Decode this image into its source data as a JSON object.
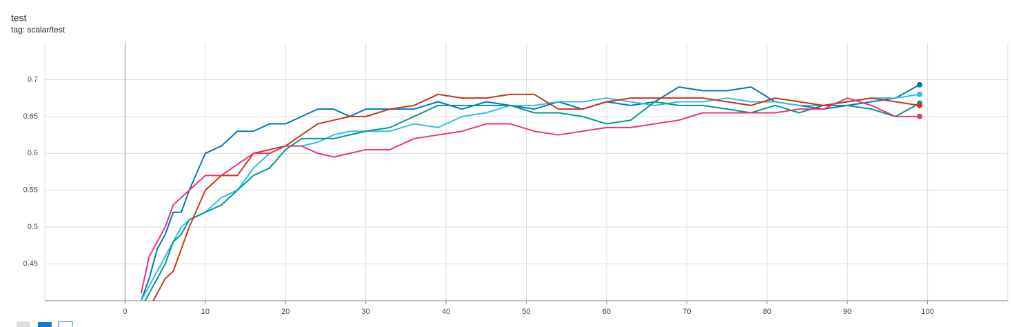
{
  "chart_data": {
    "type": "line",
    "title": "test",
    "subtitle": "tag: scalar/test",
    "x": [
      2,
      3,
      4,
      5,
      6,
      7,
      8,
      10,
      12,
      14,
      16,
      18,
      20,
      22,
      24,
      26,
      28,
      30,
      33,
      36,
      39,
      42,
      45,
      48,
      51,
      54,
      57,
      60,
      63,
      66,
      69,
      72,
      75,
      78,
      81,
      84,
      87,
      90,
      93,
      96,
      99
    ],
    "series": [
      {
        "color": "#0077bb",
        "values": [
          0.4,
          0.43,
          0.47,
          0.49,
          0.52,
          0.52,
          0.55,
          0.6,
          0.61,
          0.63,
          0.63,
          0.64,
          0.64,
          0.65,
          0.66,
          0.66,
          0.65,
          0.66,
          0.66,
          0.66,
          0.67,
          0.66,
          0.67,
          0.665,
          0.66,
          0.67,
          0.66,
          0.67,
          0.665,
          0.67,
          0.69,
          0.685,
          0.685,
          0.69,
          0.67,
          0.665,
          0.66,
          0.665,
          0.67,
          0.675,
          0.693
        ]
      },
      {
        "color": "#33bbee",
        "values": [
          0.4,
          0.42,
          0.44,
          0.46,
          0.48,
          0.5,
          0.51,
          0.52,
          0.54,
          0.55,
          0.58,
          0.6,
          0.61,
          0.61,
          0.615,
          0.625,
          0.63,
          0.63,
          0.63,
          0.64,
          0.635,
          0.65,
          0.655,
          0.665,
          0.665,
          0.67,
          0.67,
          0.675,
          0.67,
          0.665,
          0.67,
          0.67,
          0.675,
          0.67,
          0.67,
          0.665,
          0.665,
          0.67,
          0.675,
          0.675,
          0.68
        ]
      },
      {
        "color": "#009988",
        "values": [
          0.39,
          0.41,
          0.43,
          0.45,
          0.48,
          0.49,
          0.51,
          0.52,
          0.53,
          0.55,
          0.57,
          0.58,
          0.605,
          0.62,
          0.62,
          0.62,
          0.625,
          0.63,
          0.635,
          0.65,
          0.665,
          0.665,
          0.665,
          0.665,
          0.655,
          0.655,
          0.65,
          0.64,
          0.645,
          0.67,
          0.665,
          0.665,
          0.66,
          0.655,
          0.665,
          0.655,
          0.665,
          0.665,
          0.66,
          0.65,
          0.668
        ]
      },
      {
        "color": "#cc3311",
        "values": [
          0.37,
          0.39,
          0.41,
          0.43,
          0.44,
          0.47,
          0.5,
          0.55,
          0.57,
          0.57,
          0.6,
          0.605,
          0.61,
          0.625,
          0.64,
          0.645,
          0.65,
          0.65,
          0.66,
          0.665,
          0.68,
          0.675,
          0.675,
          0.68,
          0.68,
          0.66,
          0.66,
          0.67,
          0.675,
          0.675,
          0.675,
          0.675,
          0.67,
          0.665,
          0.675,
          0.67,
          0.665,
          0.67,
          0.675,
          0.67,
          0.665
        ]
      },
      {
        "color": "#ee3377",
        "values": [
          0.41,
          0.46,
          0.48,
          0.5,
          0.53,
          0.54,
          0.55,
          0.57,
          0.57,
          0.585,
          0.6,
          0.6,
          0.61,
          0.61,
          0.6,
          0.595,
          0.6,
          0.605,
          0.605,
          0.62,
          0.625,
          0.63,
          0.64,
          0.64,
          0.63,
          0.625,
          0.63,
          0.635,
          0.635,
          0.64,
          0.645,
          0.655,
          0.655,
          0.655,
          0.655,
          0.66,
          0.66,
          0.675,
          0.665,
          0.65,
          0.65
        ]
      }
    ],
    "xlim": [
      -10,
      110
    ],
    "xticks": [
      0,
      10,
      20,
      30,
      40,
      50,
      60,
      70,
      80,
      90,
      100
    ],
    "ylim": [
      0.4,
      0.75
    ],
    "yticks": [
      0.45,
      0.5,
      0.55,
      0.6,
      0.65,
      0.7
    ],
    "grid": true
  }
}
